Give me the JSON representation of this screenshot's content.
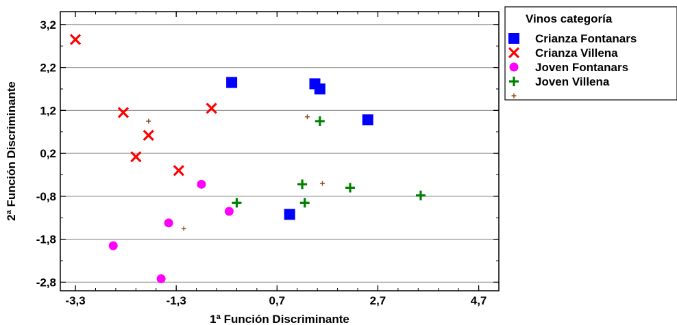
{
  "chart_data": {
    "type": "scatter",
    "xlabel": "1ª Función Discriminante",
    "ylabel": "2ª Función Discriminante",
    "xlim": [
      -3.6,
      5.1
    ],
    "ylim": [
      -3.0,
      3.5
    ],
    "xticks": [
      -3.3,
      -1.3,
      0.7,
      2.7,
      4.7
    ],
    "xtick_labels": [
      "-3,3",
      "-1,3",
      "0,7",
      "2,7",
      "4,7"
    ],
    "yticks": [
      -2.8,
      -1.8,
      -0.8,
      0.2,
      1.2,
      2.2,
      3.2
    ],
    "ytick_labels": [
      "-2,8",
      "-1,8",
      "-0,8",
      "0,2",
      "1,2",
      "2,2",
      "3,2"
    ],
    "grid": "horizontal",
    "legend_title": "Vinos categoría",
    "legend_position": "right",
    "series": [
      {
        "name": "Crianza Fontanars",
        "marker": "square",
        "color": "#0000ff",
        "points": [
          [
            -0.2,
            1.85
          ],
          [
            1.45,
            1.82
          ],
          [
            1.55,
            1.7
          ],
          [
            2.5,
            0.98
          ],
          [
            0.95,
            -1.22
          ]
        ]
      },
      {
        "name": "Crianza Villena",
        "marker": "x",
        "color": "#ff0000",
        "points": [
          [
            -3.3,
            2.85
          ],
          [
            -2.35,
            1.15
          ],
          [
            -1.85,
            0.62
          ],
          [
            -2.1,
            0.12
          ],
          [
            -1.25,
            -0.2
          ],
          [
            -0.6,
            1.25
          ]
        ]
      },
      {
        "name": "Joven Fontanars",
        "marker": "circle",
        "color": "#ff00ff",
        "points": [
          [
            -0.8,
            -0.52
          ],
          [
            -2.55,
            -1.95
          ],
          [
            -1.45,
            -1.42
          ],
          [
            -1.6,
            -2.72
          ],
          [
            -0.25,
            -1.15
          ]
        ]
      },
      {
        "name": "Joven Villena",
        "marker": "plus",
        "color": "#008000",
        "points": [
          [
            1.55,
            0.95
          ],
          [
            1.2,
            -0.52
          ],
          [
            2.15,
            -0.6
          ],
          [
            3.55,
            -0.78
          ],
          [
            -0.1,
            -0.95
          ],
          [
            1.25,
            -0.95
          ]
        ]
      },
      {
        "name": "",
        "marker": "small-plus",
        "color": "#8b4513",
        "points": [
          [
            -1.85,
            0.95
          ],
          [
            1.3,
            1.05
          ],
          [
            1.6,
            -0.5
          ],
          [
            -1.15,
            -1.55
          ]
        ]
      }
    ]
  }
}
